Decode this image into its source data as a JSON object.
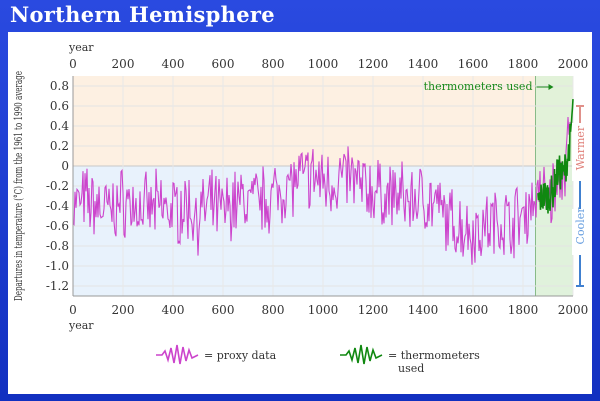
{
  "header": {
    "title": "Northern Hemisphere"
  },
  "chart_data": {
    "type": "line",
    "title": "",
    "xlabel": "year",
    "ylabel": "Departures in temperature (°C) from the 1961 to 1990 average",
    "xlim": [
      0,
      2000
    ],
    "ylim": [
      -1.3,
      0.9
    ],
    "x_ticks": [
      0,
      200,
      400,
      600,
      800,
      1000,
      1200,
      1400,
      1600,
      1800,
      2000
    ],
    "y_ticks": [
      0.8,
      0.6,
      0.4,
      0.2,
      0,
      -0.2,
      -0.4,
      -0.6,
      -0.8,
      -1.0,
      -1.2
    ],
    "y_tick_labels": [
      "0.8",
      "0.6",
      "0.4",
      "0.2",
      "0",
      "-0.2",
      "-0.4",
      "-0.6",
      "-0.8",
      "-1.0",
      "-1.2"
    ],
    "grid": true,
    "colors": {
      "proxy": "#cc44cc",
      "thermo": "#108810",
      "warm_band": "#fdf0e2",
      "cool_band": "#e8f2fc",
      "thermo_band": "#dff2d8"
    },
    "annotation": {
      "text": "thermometers used",
      "x": 1850
    },
    "side_labels": {
      "warmer": "Warmer",
      "cooler": "Cooler"
    },
    "series": [
      {
        "name": "proxy data",
        "description": "approximate envelope of proxy reconstruction",
        "x": [
          0,
          50,
          100,
          150,
          200,
          250,
          300,
          350,
          400,
          450,
          500,
          550,
          600,
          650,
          700,
          750,
          800,
          850,
          900,
          950,
          1000,
          1050,
          1100,
          1150,
          1200,
          1250,
          1300,
          1350,
          1400,
          1450,
          1500,
          1550,
          1600,
          1650,
          1700,
          1750,
          1800,
          1850,
          1900,
          1950,
          1990
        ],
        "values": [
          -0.4,
          -0.35,
          -0.4,
          -0.45,
          -0.35,
          -0.4,
          -0.45,
          -0.4,
          -0.45,
          -0.4,
          -0.5,
          -0.4,
          -0.45,
          -0.35,
          -0.35,
          -0.35,
          -0.3,
          -0.2,
          -0.15,
          -0.1,
          -0.15,
          -0.15,
          -0.1,
          -0.2,
          -0.25,
          -0.3,
          -0.3,
          -0.35,
          -0.3,
          -0.4,
          -0.55,
          -0.6,
          -0.65,
          -0.6,
          -0.55,
          -0.55,
          -0.5,
          -0.3,
          -0.3,
          -0.2,
          0.3
        ]
      },
      {
        "name": "thermometers used",
        "x": [
          1860,
          1880,
          1900,
          1920,
          1940,
          1960,
          1980,
          1990,
          2000
        ],
        "values": [
          -0.35,
          -0.3,
          -0.3,
          -0.25,
          -0.05,
          -0.1,
          0.1,
          0.3,
          0.65
        ]
      }
    ],
    "legend": {
      "position": "bottom",
      "items": [
        {
          "label": "= proxy data"
        },
        {
          "label": "= thermometers used"
        }
      ]
    }
  }
}
